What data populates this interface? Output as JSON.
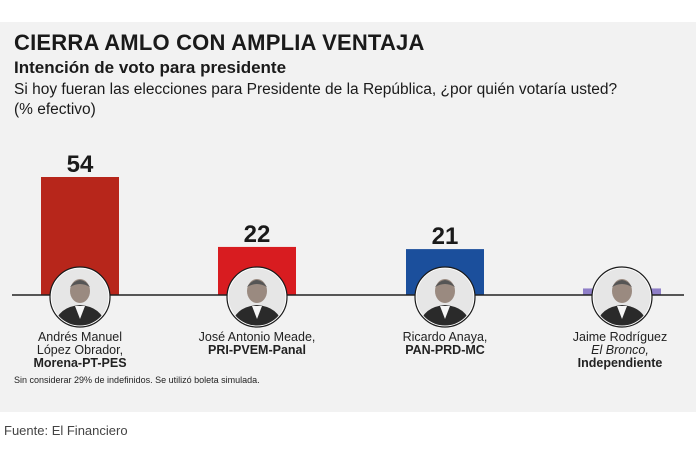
{
  "title": "CIERRA AMLO CON AMPLIA VENTAJA",
  "subtitle": "Intención de voto para presidente",
  "question": "Si hoy fueran las elecciones para Presidente de la República, ¿por quién votaría usted?",
  "unit": "(% efectivo)",
  "note": "Sin considerar 29% de indefinidos. Se utilizó boleta simulada.",
  "source": "Fuente: El Financiero",
  "colors": {
    "background": "#f2f2f2",
    "baseline": "#222222"
  },
  "candidates": [
    {
      "line1": "Andrés Manuel",
      "line2": "López Obrador,",
      "party": "Morena-PT-PES",
      "photo": "candidate-photo-icon"
    },
    {
      "line1": "José Antonio Meade,",
      "party": "PRI-PVEM-Panal",
      "photo": "candidate-photo-icon"
    },
    {
      "line1": "Ricardo Anaya,",
      "party": "PAN-PRD-MC",
      "photo": "candidate-photo-icon"
    },
    {
      "line1": "Jaime Rodríguez",
      "line2": "El Bronco,",
      "party": "Independiente",
      "photo": "candidate-photo-icon"
    }
  ],
  "chart_data": {
    "type": "bar",
    "categories": [
      "Andrés Manuel López Obrador",
      "José Antonio Meade",
      "Ricardo Anaya",
      "Jaime Rodríguez"
    ],
    "values": [
      54,
      22,
      21,
      3
    ],
    "colors": [
      "#b7261b",
      "#d81c20",
      "#1b4f9c",
      "#8f7fc8"
    ],
    "ylim": [
      0,
      54
    ],
    "grid": false,
    "xlabel": "",
    "ylabel": ""
  }
}
